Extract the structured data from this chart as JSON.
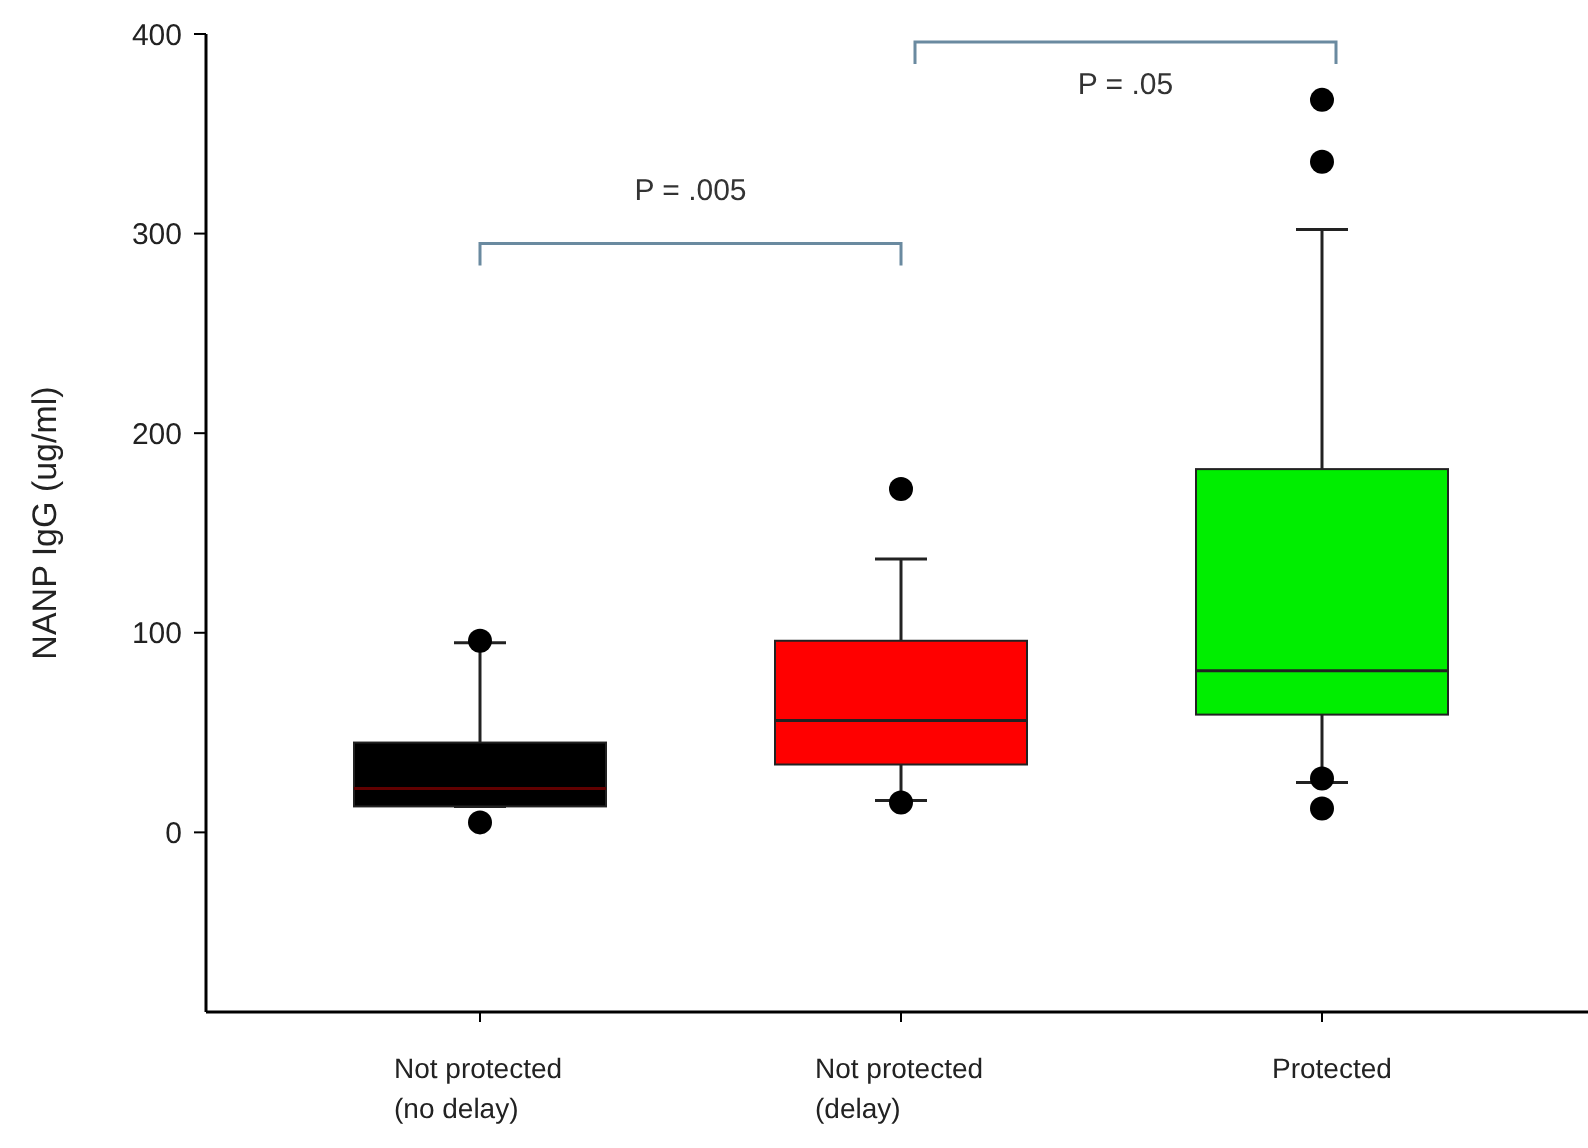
{
  "chart_data": {
    "type": "box",
    "ylabel": "NANP IgG (ug/ml)",
    "categories": [
      "Not protected\n(no delay)",
      "Not protected\n(delay)",
      "Protected"
    ],
    "colors": [
      "#000000",
      "#ff0000",
      "#00ee00"
    ],
    "boxes": [
      {
        "low": 13,
        "q1": 13,
        "median": 22,
        "q3": 45,
        "high": 95,
        "outliers": [
          96,
          5
        ]
      },
      {
        "low": 16,
        "q1": 34,
        "median": 56,
        "q3": 96,
        "high": 137,
        "outliers": [
          172,
          15
        ]
      },
      {
        "low": 25,
        "q1": 59,
        "median": 81,
        "q3": 182,
        "high": 302,
        "outliers": [
          367,
          336,
          27,
          12
        ]
      }
    ],
    "ylim": [
      -90,
      400
    ],
    "yticks": [
      0,
      100,
      200,
      300,
      400
    ],
    "annotations": [
      "P = .005",
      "P = .05"
    ]
  }
}
